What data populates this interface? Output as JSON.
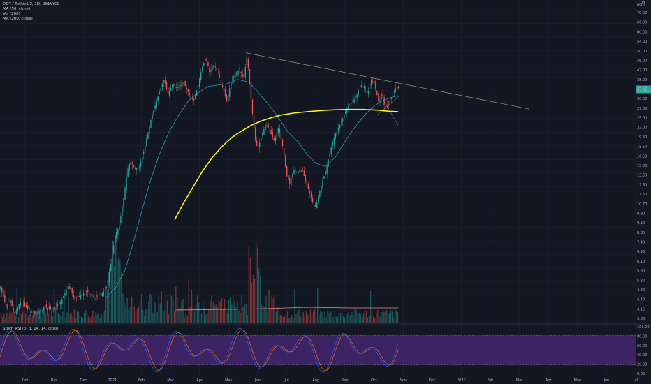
{
  "header": {
    "symbol_line": "DOT / TetherUS, 1D, BINANCE",
    "ma50_label": "MA (50, close)",
    "vol_label": "Vol (200)",
    "ma200_label": "MA (200, close)",
    "stoch_label": "Stoch RSI (3, 3, 14, 14, close)",
    "currency": "USDT"
  },
  "colors": {
    "background": "#131722",
    "up": "#26a69a",
    "down": "#ef5350",
    "ma50": "#2e8fa8",
    "ma200": "#f5f21d",
    "volume_ma": "#f28b82",
    "trendline": "#9e9e7a",
    "stoch_band": "#4b2a7b",
    "stoch_k": "#2962ff",
    "stoch_d": "#ff6d00",
    "price_tag": "#26a69a"
  },
  "price_tags": [
    "34.87",
    "07:26:43"
  ],
  "chart_data": {
    "type": "candlestick",
    "y_scale": "log",
    "ylim": [
      3.7,
      74
    ],
    "x_tick_labels": [
      "Oct",
      "Nov",
      "Dec",
      "2021",
      "Feb",
      "Mar",
      "Apr",
      "May",
      "Jun",
      "Jul",
      "Aug",
      "Sep",
      "Oct",
      "Nov",
      "Dec",
      "2022",
      "Feb",
      "Mar",
      "Apr",
      "May",
      "Jun",
      "Jul"
    ],
    "y_tick_labels": [
      "70.00",
      "66.00",
      "60.00",
      "54.00",
      "50.00",
      "46.00",
      "42.00",
      "38.00",
      "34.00",
      "30.00",
      "27.00",
      "25.00",
      "23.00",
      "19.50",
      "18.50",
      "16.50",
      "15.00",
      "13.50",
      "12.50",
      "11.50",
      "10.70",
      "9.90",
      "9.10",
      "8.30",
      "7.40",
      "6.90",
      "6.10",
      "5.80",
      "5.30",
      "4.80",
      "4.40",
      "4.15",
      "3.85"
    ],
    "stoch_tick_labels": [
      "100.00",
      "80.00",
      "60.00",
      "40.00",
      "20.00",
      "0.00"
    ],
    "stoch_band": [
      20,
      80
    ],
    "close_path": [
      [
        0,
        5.2
      ],
      [
        8,
        4.3
      ],
      [
        14,
        4.6
      ],
      [
        20,
        4.0
      ],
      [
        28,
        4.5
      ],
      [
        40,
        4.2
      ],
      [
        50,
        4.0
      ],
      [
        62,
        4.3
      ],
      [
        74,
        4.2
      ],
      [
        86,
        4.5
      ],
      [
        98,
        5.3
      ],
      [
        106,
        4.6
      ],
      [
        114,
        4.8
      ],
      [
        124,
        5.0
      ],
      [
        134,
        4.7
      ],
      [
        146,
        4.9
      ],
      [
        152,
        5.2
      ],
      [
        158,
        6.5
      ],
      [
        164,
        8.5
      ],
      [
        170,
        9.3
      ],
      [
        176,
        12.0
      ],
      [
        182,
        16.0
      ],
      [
        186,
        17.5
      ],
      [
        190,
        16.5
      ],
      [
        198,
        16.0
      ],
      [
        206,
        19.5
      ],
      [
        214,
        25.0
      ],
      [
        222,
        30.0
      ],
      [
        228,
        34.0
      ],
      [
        234,
        38.0
      ],
      [
        240,
        33.0
      ],
      [
        246,
        36.0
      ],
      [
        254,
        35.0
      ],
      [
        262,
        37.0
      ],
      [
        270,
        33.0
      ],
      [
        276,
        31.0
      ],
      [
        282,
        35.0
      ],
      [
        288,
        42.0
      ],
      [
        294,
        47.0
      ],
      [
        300,
        40.0
      ],
      [
        306,
        44.0
      ],
      [
        312,
        40.0
      ],
      [
        318,
        35.0
      ],
      [
        324,
        31.0
      ],
      [
        330,
        37.0
      ],
      [
        336,
        40.0
      ],
      [
        342,
        42.0
      ],
      [
        348,
        38.0
      ],
      [
        353,
        48.0
      ],
      [
        358,
        33.0
      ],
      [
        364,
        22.0
      ],
      [
        368,
        19.5
      ],
      [
        374,
        22.0
      ],
      [
        380,
        25.0
      ],
      [
        386,
        23.0
      ],
      [
        392,
        21.0
      ],
      [
        398,
        24.0
      ],
      [
        404,
        20.0
      ],
      [
        410,
        15.0
      ],
      [
        414,
        14.0
      ],
      [
        420,
        16.0
      ],
      [
        426,
        15.5
      ],
      [
        432,
        16.0
      ],
      [
        438,
        14.0
      ],
      [
        444,
        12.5
      ],
      [
        450,
        11.0
      ],
      [
        454,
        12.0
      ],
      [
        460,
        14.0
      ],
      [
        466,
        16.0
      ],
      [
        472,
        19.0
      ],
      [
        478,
        22.0
      ],
      [
        484,
        24.0
      ],
      [
        490,
        26.0
      ],
      [
        496,
        29.0
      ],
      [
        502,
        30.0
      ],
      [
        508,
        32.0
      ],
      [
        514,
        35.0
      ],
      [
        520,
        36.0
      ],
      [
        526,
        33.0
      ],
      [
        530,
        38.0
      ],
      [
        536,
        36.0
      ],
      [
        542,
        30.0
      ],
      [
        546,
        34.0
      ],
      [
        550,
        29.0
      ],
      [
        556,
        30.0
      ],
      [
        562,
        33.0
      ],
      [
        566,
        35.0
      ],
      [
        570,
        34.87
      ]
    ],
    "ma50_path": [
      [
        152,
        4.7
      ],
      [
        166,
        5.2
      ],
      [
        178,
        6.0
      ],
      [
        190,
        7.8
      ],
      [
        202,
        10.5
      ],
      [
        214,
        14.0
      ],
      [
        228,
        18.5
      ],
      [
        242,
        23.0
      ],
      [
        256,
        27.0
      ],
      [
        270,
        31.0
      ],
      [
        284,
        33.5
      ],
      [
        298,
        35.5
      ],
      [
        312,
        36.0
      ],
      [
        326,
        36.5
      ],
      [
        340,
        38.0
      ],
      [
        356,
        37.0
      ],
      [
        370,
        33.5
      ],
      [
        384,
        30.0
      ],
      [
        398,
        26.5
      ],
      [
        412,
        23.0
      ],
      [
        426,
        21.0
      ],
      [
        440,
        18.5
      ],
      [
        452,
        17.0
      ],
      [
        466,
        16.5
      ],
      [
        480,
        18.0
      ],
      [
        494,
        21.0
      ],
      [
        508,
        24.0
      ],
      [
        522,
        27.0
      ],
      [
        536,
        29.5
      ],
      [
        548,
        31.0
      ],
      [
        560,
        32.0
      ],
      [
        570,
        32.5
      ]
    ],
    "ma200_path": [
      [
        250,
        9.9
      ],
      [
        262,
        11.5
      ],
      [
        276,
        13.5
      ],
      [
        290,
        15.8
      ],
      [
        304,
        18.0
      ],
      [
        318,
        20.0
      ],
      [
        332,
        21.8
      ],
      [
        346,
        23.2
      ],
      [
        360,
        24.5
      ],
      [
        374,
        25.5
      ],
      [
        388,
        26.3
      ],
      [
        402,
        27.0
      ],
      [
        420,
        27.5
      ],
      [
        440,
        27.9
      ],
      [
        460,
        28.2
      ],
      [
        480,
        28.4
      ],
      [
        500,
        28.5
      ],
      [
        520,
        28.5
      ],
      [
        540,
        28.3
      ],
      [
        556,
        28.0
      ],
      [
        570,
        27.9
      ]
    ],
    "trendline": [
      [
        352,
        49.0
      ],
      [
        758,
        28.6
      ]
    ],
    "volume_ma_level": 0.35
  }
}
